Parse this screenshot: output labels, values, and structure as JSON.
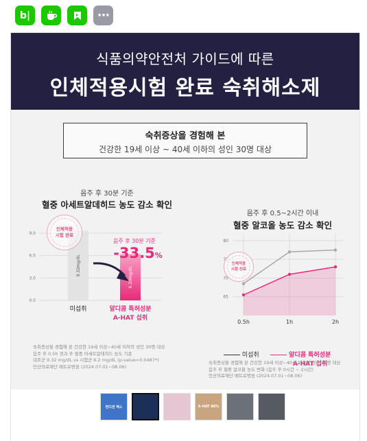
{
  "share_buttons": [
    {
      "icon": "blog-b-icon",
      "color": "#1ec800"
    },
    {
      "icon": "cafe-cup-icon",
      "color": "#1ec800"
    },
    {
      "icon": "bookmark-flag-icon",
      "color": "#1ec800"
    },
    {
      "icon": "more-dots-icon",
      "color": "#9a9aa6"
    }
  ],
  "banner": {
    "line1": "식품의약안전처 가이드에 따른",
    "line2": "인체적용시험 완료 숙취해소제"
  },
  "subject_box": {
    "title": "숙취증상을 경험해 본",
    "subtitle": "건강한 19세 이상 ~ 40세 이하의 성인 30명 대상"
  },
  "left_section": {
    "caption_small": "음주 후 30분 기준",
    "caption_bold": "혈중 아세트알데히드 농도 감소 확인",
    "stamp_text": "인체적용\n시험 완료",
    "highlight_small": "음주 후 30분 기준",
    "highlight_big": "-33.5",
    "highlight_unit": "%",
    "footnote": "숙취증상을 경험해 본 건강한 19세 이상~40세 이하의 성인 30명 대상\n음주 후 0.5h 경과 후 혈중 아세트알데히드 농도 기준\n대조군 9.32 mg/dL vs 시험군 6.2 mg/dL (p-value=0.0487*)\n인산의료재단 메트로병원 (2024.07.01~08.06)"
  },
  "right_section": {
    "caption_small": "음주 후 0.5~2시간 이내",
    "caption_bold": "혈중 알코올 농도 감소 확인",
    "stamp_text": "인체적용\n시험 완료",
    "legend_control": "미섭취",
    "legend_test_1": "알디콤 특허성분",
    "legend_test_2": "A-HAT 섭취",
    "footnote": "숙취증상을 경험해 본 건강한 19세 이상~40세 이하의 성인 30명 대상\n음주 후 혈중 알코올 농도 변화 (음주 후 0시간 ~ 2시간)\n인산의료재단 메트로병원 (2024.07.01~08.06)"
  },
  "chart_data": [
    {
      "type": "bar",
      "title": "혈중 아세트알데히드 농도 감소 확인",
      "categories": [
        "미섭취",
        "알디콤 특허성분 A-HAT 섭취"
      ],
      "category_lines": [
        [
          "미섭취"
        ],
        [
          "알디콤 특허성분",
          "A-HAT 섭취"
        ]
      ],
      "values": [
        9.32,
        6.2
      ],
      "value_labels": [
        "9.32mg/dL",
        "6.20mg/dL"
      ],
      "yticks": [
        "0.0",
        "3.0",
        "6.0",
        "9.0"
      ],
      "ylim": [
        0,
        9.0
      ],
      "colors": [
        "#e3e3e3",
        "#e8297a"
      ],
      "grid": true
    },
    {
      "type": "line",
      "title": "혈중 알코올 농도 감소 확인",
      "x": [
        "0.5h",
        "1h",
        "2h"
      ],
      "series": [
        {
          "name": "미섭취",
          "values": [
            68.5,
            77,
            77.5
          ],
          "color": "#a8a8a8"
        },
        {
          "name": "알디콤 특허성분 A-HAT 섭취",
          "values": [
            65.5,
            71,
            73
          ],
          "color": "#e8297a"
        }
      ],
      "yticks": [
        65,
        70,
        75,
        80
      ],
      "ylim": [
        60,
        82
      ],
      "grid": true
    }
  ],
  "thumbnails": [
    {
      "label": "컨디션 엑스",
      "color": "#3f74c8"
    },
    {
      "label": "",
      "color": "#1c2f58"
    },
    {
      "label": "",
      "color": "#e7c6d3"
    },
    {
      "label": "A-HAT 80%",
      "color": "#c8a57e"
    },
    {
      "label": "",
      "color": "#6c7077"
    },
    {
      "label": "",
      "color": "#565a63"
    }
  ]
}
